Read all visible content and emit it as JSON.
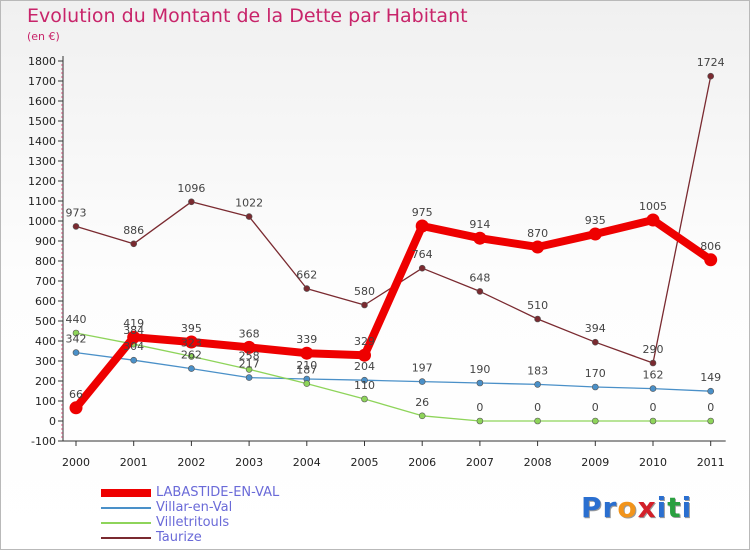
{
  "chart_data": {
    "type": "line",
    "title": "Evolution du Montant de la Dette par Habitant",
    "subtitle": "(en €)",
    "xlabel": "",
    "ylabel": "",
    "ylim": [
      -100,
      1800
    ],
    "y_ticks": [
      -100,
      0,
      100,
      200,
      300,
      400,
      500,
      600,
      700,
      800,
      900,
      1000,
      1100,
      1200,
      1300,
      1400,
      1500,
      1600,
      1700,
      1800
    ],
    "categories": [
      "2000",
      "2001",
      "2002",
      "2003",
      "2004",
      "2005",
      "2006",
      "2007",
      "2008",
      "2009",
      "2010",
      "2011"
    ],
    "grid": false,
    "legend_position": "bottom-left",
    "series": [
      {
        "name": "LABASTIDE-EN-VAL",
        "values": [
          66,
          419,
          395,
          368,
          339,
          329,
          975,
          914,
          870,
          935,
          1005,
          806
        ],
        "color": "#ee0000",
        "emphasis": true
      },
      {
        "name": "Villar-en-Val",
        "values": [
          342,
          304,
          262,
          217,
          210,
          204,
          197,
          190,
          183,
          170,
          162,
          149
        ],
        "color": "#4a90c8"
      },
      {
        "name": "Villetritouls",
        "values": [
          440,
          384,
          323,
          258,
          187,
          110,
          26,
          0,
          0,
          0,
          0,
          0
        ],
        "color": "#8ed45a"
      },
      {
        "name": "Taurize",
        "values": [
          973,
          886,
          1096,
          1022,
          662,
          580,
          764,
          648,
          510,
          394,
          290,
          1724
        ],
        "color": "#7a2a30"
      }
    ]
  },
  "logo": {
    "letters": [
      "P",
      "r",
      "o",
      "x",
      "i",
      "t",
      "i"
    ],
    "colors": [
      "#2a6fd0",
      "#2a6fd0",
      "#f2941b",
      "#d3202a",
      "#2a6fd0",
      "#2aa040",
      "#2a6fd0"
    ]
  }
}
